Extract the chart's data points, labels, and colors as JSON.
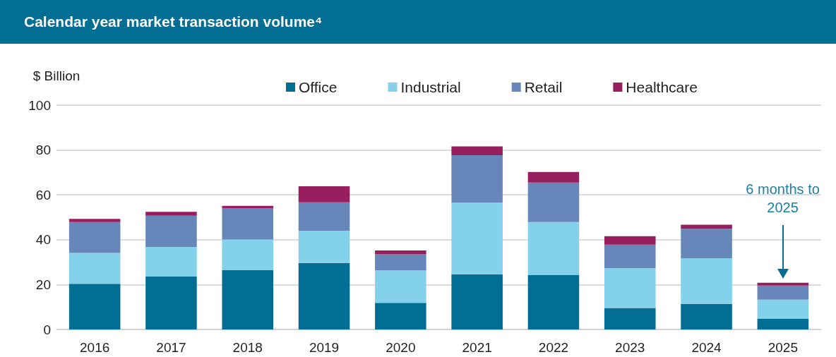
{
  "chart_data": {
    "type": "bar",
    "title": "Calendar year market transaction volume⁴",
    "ylabel": "$ Billion",
    "categories": [
      "2016",
      "2017",
      "2018",
      "2019",
      "2020",
      "2021",
      "2022",
      "2023",
      "2024",
      "2025"
    ],
    "series": [
      {
        "name": "Office",
        "color": "#036e94",
        "values": [
          20.4,
          23.6,
          26.4,
          29.6,
          11.9,
          24.6,
          24.4,
          9.6,
          11.4,
          4.9
        ]
      },
      {
        "name": "Industrial",
        "color": "#83d1ea",
        "values": [
          13.7,
          13.2,
          13.7,
          14.4,
          14.4,
          32.0,
          23.5,
          17.7,
          20.4,
          8.4
        ]
      },
      {
        "name": "Retail",
        "color": "#6787ba",
        "values": [
          13.8,
          13.9,
          14.0,
          12.7,
          7.2,
          21.1,
          17.6,
          10.5,
          13.1,
          6.3
        ]
      },
      {
        "name": "Healthcare",
        "color": "#971e5f",
        "values": [
          1.4,
          1.7,
          1.0,
          7.1,
          1.7,
          3.9,
          4.7,
          3.8,
          1.8,
          1.2
        ]
      }
    ],
    "stacked": true,
    "ylim": [
      0,
      100
    ],
    "yticks": [
      0,
      20,
      40,
      60,
      80,
      100
    ],
    "grid": "y",
    "legend": "top",
    "annotations": [
      "6 months to\n2025"
    ]
  }
}
